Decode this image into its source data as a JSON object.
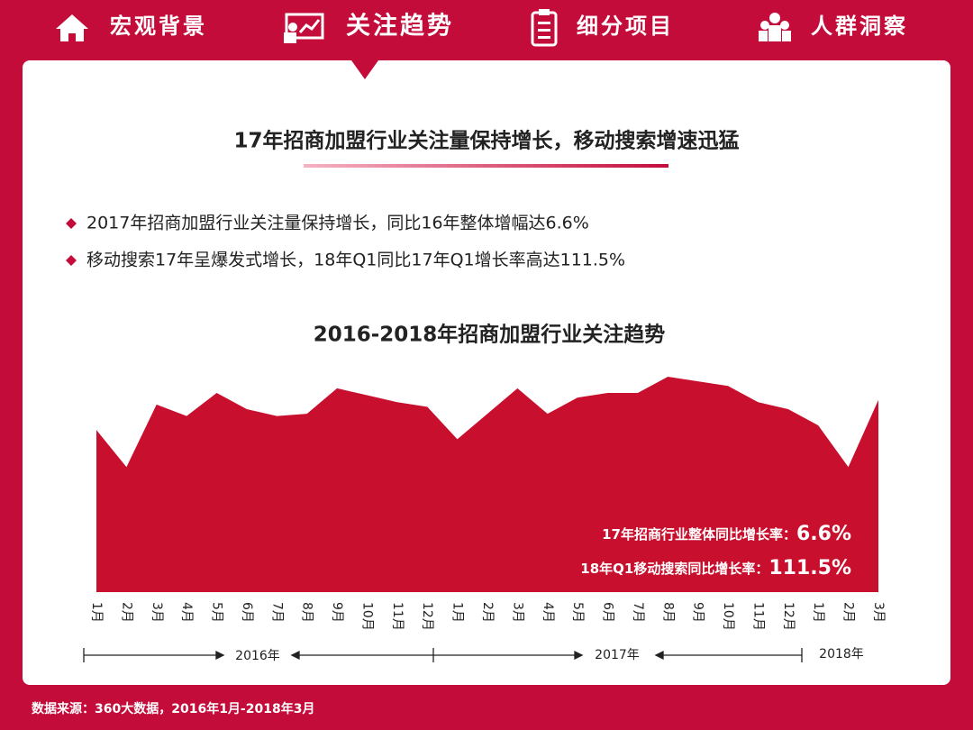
{
  "nav": [
    "宏观背景",
    "关注趋势",
    "细分项目",
    "人群洞察"
  ],
  "headline": "17年招商加盟行业关注量保持增长，移动搜索增速迅猛",
  "bullets": [
    "2017年招商加盟行业关注量保持增长，同比16年整体增幅达6.6%",
    "移动搜索17年呈爆发式增长，18年Q1同比17年Q1增长率高达111.5%"
  ],
  "source": "数据来源：360大数据，2016年1月-2018年3月",
  "chart_data": {
    "type": "area",
    "title": "2016-2018年招商加盟行业关注趋势",
    "categories": [
      "1月",
      "2月",
      "3月",
      "4月",
      "5月",
      "6月",
      "7月",
      "8月",
      "9月",
      "10月",
      "11月",
      "12月",
      "1月",
      "2月",
      "3月",
      "4月",
      "5月",
      "6月",
      "7月",
      "8月",
      "9月",
      "10月",
      "11月",
      "12月",
      "1月",
      "2月",
      "3月"
    ],
    "values": [
      70,
      54,
      81,
      76,
      86,
      79,
      76,
      77,
      88,
      85,
      82,
      80,
      66,
      77,
      88,
      77,
      84,
      86,
      86,
      93,
      91,
      89,
      82,
      79,
      72,
      54,
      83
    ],
    "color": "#c8102e",
    "ylim": [
      0,
      100
    ],
    "years": [
      "2016年",
      "2017年",
      "2018年"
    ],
    "annotations": [
      {
        "label": "17年招商行业整体同比增长率：",
        "value": "6.6%"
      },
      {
        "label": "18年Q1移动搜索同比增长率：",
        "value": "111.5%"
      }
    ]
  }
}
